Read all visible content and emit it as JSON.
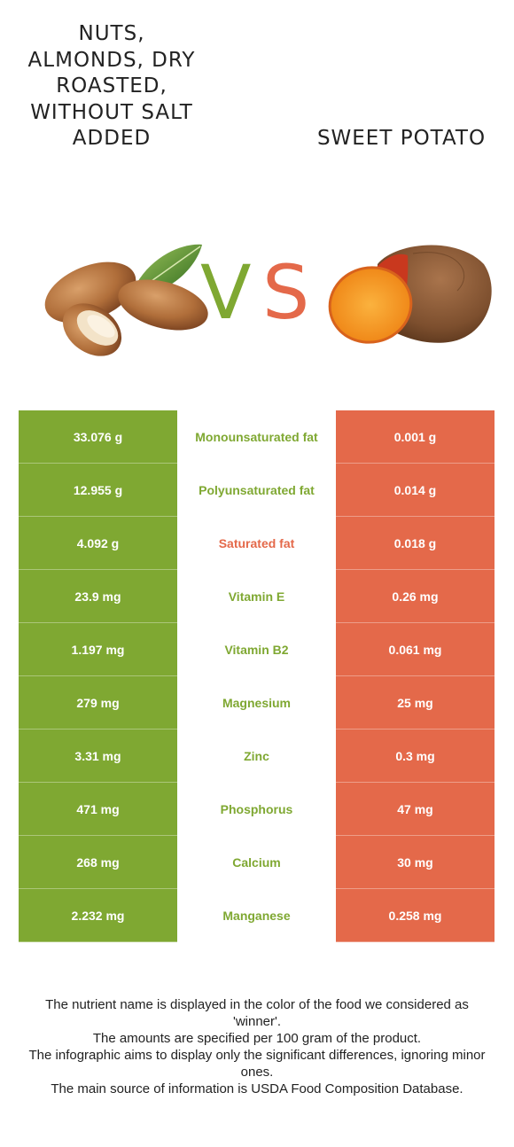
{
  "left_food": {
    "title": "Nuts, almonds, dry roasted, without salt added",
    "image": "almonds-image"
  },
  "right_food": {
    "title": "Sweet potato",
    "image": "sweet-potato-image"
  },
  "vs": {
    "v": "V",
    "s": "S"
  },
  "colors": {
    "left": "#7fa832",
    "right": "#e4694a",
    "neutral": "#ffffff"
  },
  "rows": [
    {
      "left": "33.076 g",
      "nutrient": "Monounsaturated fat",
      "right": "0.001 g",
      "winner": "left"
    },
    {
      "left": "12.955 g",
      "nutrient": "Polyunsaturated fat",
      "right": "0.014 g",
      "winner": "left"
    },
    {
      "left": "4.092 g",
      "nutrient": "Saturated fat",
      "right": "0.018 g",
      "winner": "right"
    },
    {
      "left": "23.9 mg",
      "nutrient": "Vitamin E",
      "right": "0.26 mg",
      "winner": "left"
    },
    {
      "left": "1.197 mg",
      "nutrient": "Vitamin B2",
      "right": "0.061 mg",
      "winner": "left"
    },
    {
      "left": "279 mg",
      "nutrient": "Magnesium",
      "right": "25 mg",
      "winner": "left"
    },
    {
      "left": "3.31 mg",
      "nutrient": "Zinc",
      "right": "0.3 mg",
      "winner": "left"
    },
    {
      "left": "471 mg",
      "nutrient": "Phosphorus",
      "right": "47 mg",
      "winner": "left"
    },
    {
      "left": "268 mg",
      "nutrient": "Calcium",
      "right": "30 mg",
      "winner": "left"
    },
    {
      "left": "2.232 mg",
      "nutrient": "Manganese",
      "right": "0.258 mg",
      "winner": "left"
    }
  ],
  "footer": [
    "The nutrient name is displayed in the color of the food we considered as 'winner'.",
    "The amounts are specified per 100 gram of the product.",
    "The infographic aims to display only the significant differences, ignoring minor ones.",
    "The main source of information is USDA Food Composition Database."
  ]
}
